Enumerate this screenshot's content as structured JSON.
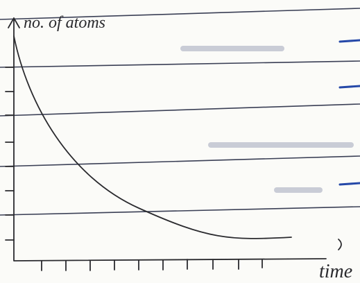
{
  "labels": {
    "y_axis": "no. of atoms",
    "x_axis": "time"
  }
}
